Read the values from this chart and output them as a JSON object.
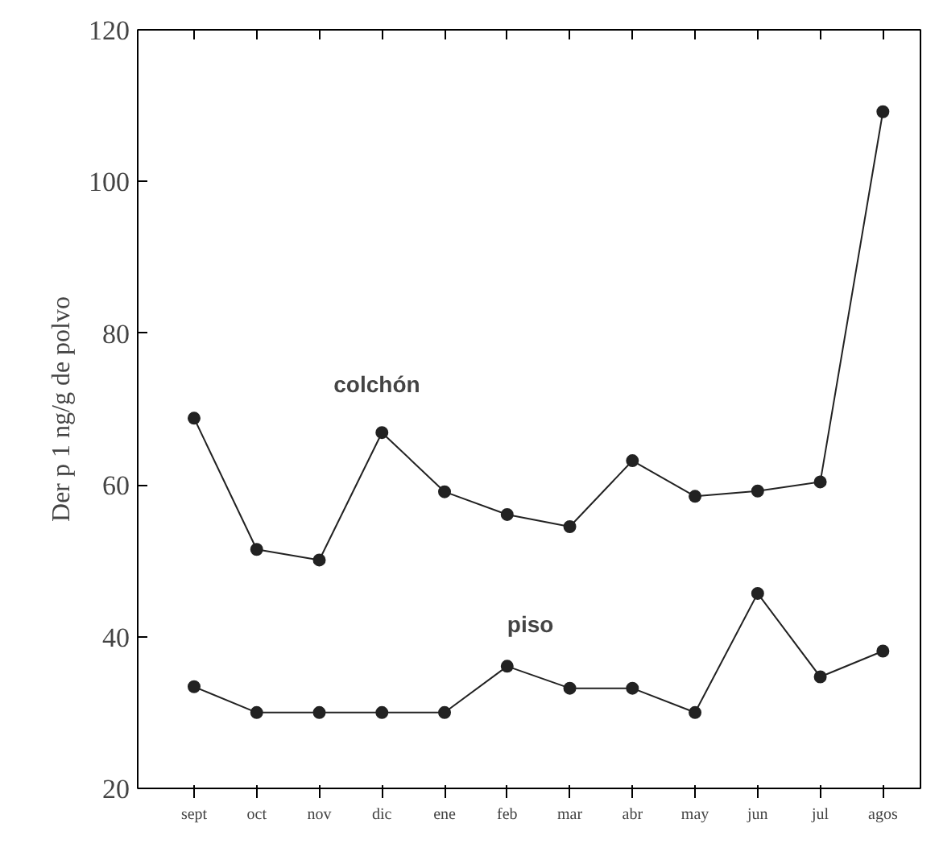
{
  "chart_data": {
    "type": "line",
    "ylabel": "Der p 1 ng/g de polvo",
    "categories": [
      "sept",
      "oct",
      "nov",
      "dic",
      "ene",
      "feb",
      "mar",
      "abr",
      "may",
      "jun",
      "jul",
      "agos"
    ],
    "series": [
      {
        "name": "colchón",
        "color": "#222222",
        "values": [
          68.8,
          51.5,
          50.1,
          66.9,
          59.1,
          56.1,
          54.5,
          63.2,
          58.5,
          59.2,
          60.4,
          109.2
        ]
      },
      {
        "name": "piso",
        "color": "#222222",
        "values": [
          33.4,
          30,
          30,
          30,
          30,
          36.1,
          33.2,
          33.2,
          30,
          45.7,
          34.7,
          38.1
        ]
      }
    ],
    "ylim": [
      20,
      120
    ],
    "yticks": [
      20,
      40,
      60,
      80,
      100,
      120
    ],
    "grid": false,
    "legend": false,
    "marker": "circle",
    "line_style": "solid"
  }
}
